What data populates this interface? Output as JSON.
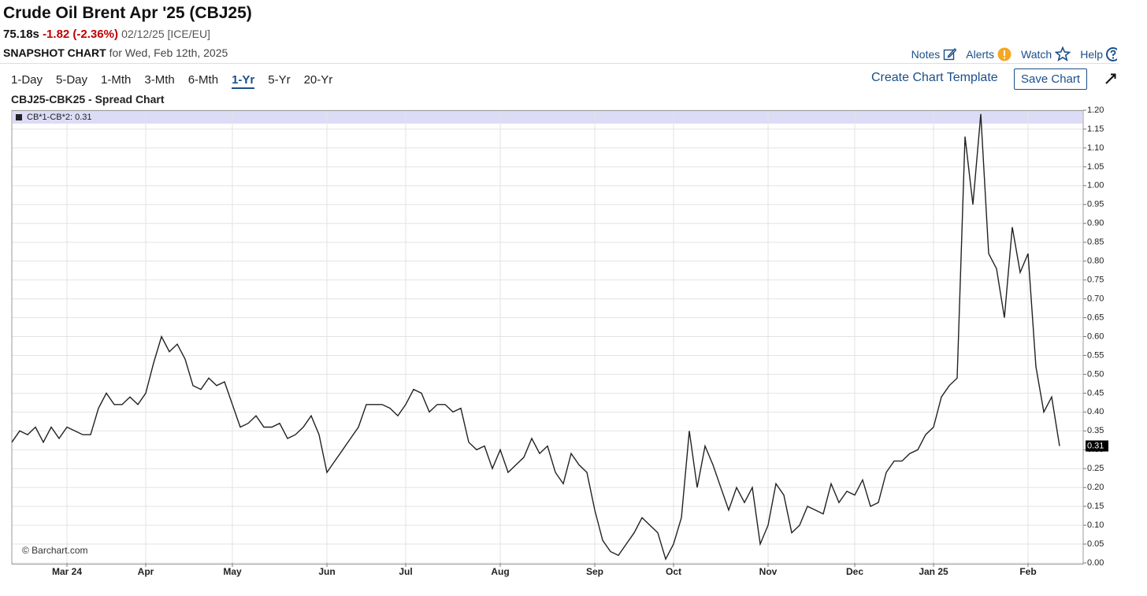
{
  "header": {
    "title": "Crude Oil Brent Apr '25 (CBJ25)",
    "price": "75.18s",
    "change": "-1.82 (-2.36%)",
    "date": "02/12/25 [ICE/EU]",
    "snapshot": "SNAPSHOT CHART",
    "snapshot_date": "for Wed, Feb 12th, 2025",
    "links": [
      "Notes",
      "Alerts",
      "Watch",
      "Help"
    ],
    "periods": [
      "1-Day",
      "5-Day",
      "1-Mth",
      "3-Mth",
      "6-Mth",
      "1-Yr",
      "5-Yr",
      "20-Yr"
    ],
    "create_template": "Create Chart Template",
    "save_chart": "Save Chart"
  },
  "chart_data": {
    "type": "line",
    "title": "CBJ25-CBK25 - Spread Chart",
    "watermark": "© Barchart.com",
    "legend_label": "CB*1-CB*2: 0.31",
    "categories": [
      null,
      null,
      null,
      null,
      null,
      null,
      null,
      "Mar 24",
      null,
      null,
      null,
      null,
      null,
      null,
      null,
      null,
      null,
      "Apr",
      null,
      null,
      null,
      null,
      null,
      null,
      null,
      null,
      null,
      null,
      "May",
      null,
      null,
      null,
      null,
      null,
      null,
      null,
      null,
      null,
      null,
      null,
      "Jun",
      null,
      null,
      null,
      null,
      null,
      null,
      null,
      null,
      null,
      "Jul",
      null,
      null,
      null,
      null,
      null,
      null,
      null,
      null,
      null,
      null,
      null,
      "Aug",
      null,
      null,
      null,
      null,
      null,
      null,
      null,
      null,
      null,
      null,
      null,
      "Sep",
      null,
      null,
      null,
      null,
      null,
      null,
      null,
      null,
      null,
      "Oct",
      null,
      null,
      null,
      null,
      null,
      null,
      null,
      null,
      null,
      null,
      null,
      "Nov",
      null,
      null,
      null,
      null,
      null,
      null,
      null,
      null,
      null,
      null,
      "Dec",
      null,
      null,
      null,
      null,
      null,
      null,
      null,
      null,
      null,
      "Jan 25",
      null,
      null,
      null,
      null,
      null,
      null,
      null,
      null,
      null,
      null,
      null,
      "Feb",
      null,
      null,
      null,
      null
    ],
    "series": [
      {
        "name": "CB*1-CB*2",
        "color": "#222222",
        "values": [
          0.32,
          0.35,
          0.34,
          0.36,
          0.32,
          0.36,
          0.33,
          0.36,
          0.35,
          0.34,
          0.34,
          0.41,
          0.45,
          0.42,
          0.42,
          0.44,
          0.42,
          0.45,
          0.53,
          0.6,
          0.56,
          0.58,
          0.54,
          0.47,
          0.46,
          0.49,
          0.47,
          0.48,
          0.42,
          0.36,
          0.37,
          0.39,
          0.36,
          0.36,
          0.37,
          0.33,
          0.34,
          0.36,
          0.39,
          0.34,
          0.24,
          0.27,
          0.3,
          0.33,
          0.36,
          0.42,
          0.42,
          0.42,
          0.41,
          0.39,
          0.42,
          0.46,
          0.45,
          0.4,
          0.42,
          0.42,
          0.4,
          0.41,
          0.32,
          0.3,
          0.31,
          0.25,
          0.3,
          0.24,
          0.26,
          0.28,
          0.33,
          0.29,
          0.31,
          0.24,
          0.21,
          0.29,
          0.26,
          0.24,
          0.14,
          0.06,
          0.03,
          0.02,
          0.05,
          0.08,
          0.12,
          0.1,
          0.08,
          0.01,
          0.05,
          0.12,
          0.35,
          0.2,
          0.31,
          0.26,
          0.2,
          0.14,
          0.2,
          0.16,
          0.2,
          0.05,
          0.1,
          0.21,
          0.18,
          0.08,
          0.1,
          0.15,
          0.14,
          0.13,
          0.21,
          0.16,
          0.19,
          0.18,
          0.22,
          0.15,
          0.16,
          0.24,
          0.27,
          0.27,
          0.29,
          0.3,
          0.34,
          0.36,
          0.44,
          0.47,
          0.49,
          1.13,
          0.95,
          1.19,
          0.82,
          0.78,
          0.65,
          0.89,
          0.77,
          0.82,
          0.52,
          0.4,
          0.44,
          0.31
        ]
      }
    ],
    "ylim": [
      0,
      1.2
    ],
    "yticks": [
      {
        "value": 0,
        "label": "0.00"
      },
      0.05,
      {
        "value": 0.1,
        "label": "0.10"
      },
      0.15,
      {
        "value": 0.2,
        "label": "0.20"
      },
      0.25,
      {
        "value": 0.3,
        "label": "0.30"
      },
      0.35,
      {
        "value": 0.4,
        "label": "0.40"
      },
      0.45,
      {
        "value": 0.5,
        "label": "0.50"
      },
      0.55,
      {
        "value": 0.6,
        "label": "0.60"
      },
      0.65,
      {
        "value": 0.7,
        "label": "0.70"
      },
      0.75,
      {
        "value": 0.8,
        "label": "0.80"
      },
      0.85,
      {
        "value": 0.9,
        "label": "0.90"
      },
      0.95,
      {
        "value": 1,
        "label": "1.00"
      },
      1.05,
      {
        "value": 1.1,
        "label": "1.10"
      },
      1.15,
      {
        "value": 1.2,
        "label": "1.20"
      }
    ],
    "grid": true
  }
}
